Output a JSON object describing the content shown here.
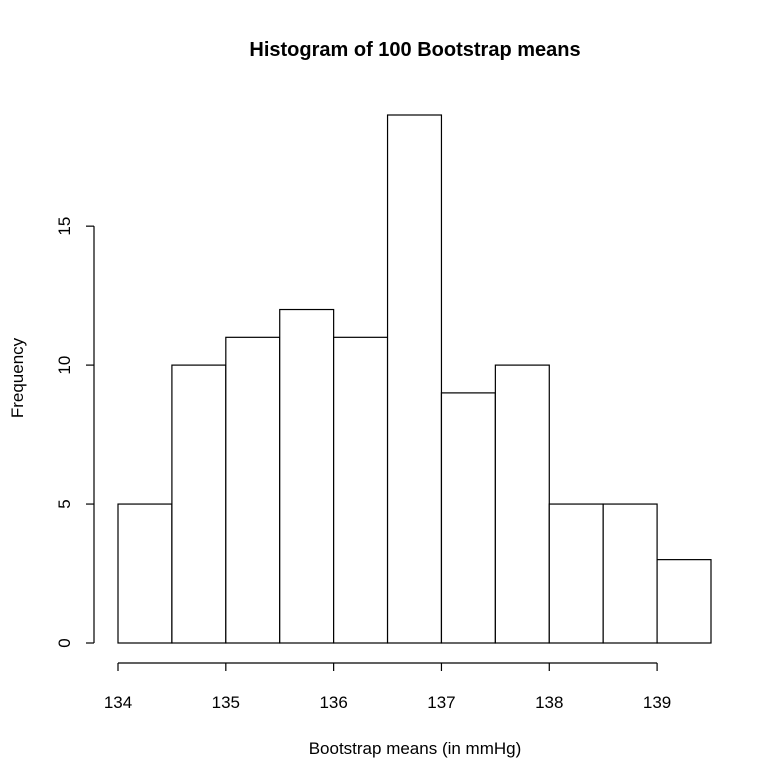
{
  "chart_data": {
    "type": "bar",
    "title": "Histogram of 100 Bootstrap means",
    "xlabel": "Bootstrap means (in mmHg)",
    "ylabel": "Frequency",
    "bins": [
      {
        "start": 134.0,
        "end": 134.5,
        "count": 5
      },
      {
        "start": 134.5,
        "end": 135.0,
        "count": 10
      },
      {
        "start": 135.0,
        "end": 135.5,
        "count": 11
      },
      {
        "start": 135.5,
        "end": 136.0,
        "count": 12
      },
      {
        "start": 136.0,
        "end": 136.5,
        "count": 11
      },
      {
        "start": 136.5,
        "end": 137.0,
        "count": 19
      },
      {
        "start": 137.0,
        "end": 137.5,
        "count": 9
      },
      {
        "start": 137.5,
        "end": 138.0,
        "count": 10
      },
      {
        "start": 138.0,
        "end": 138.5,
        "count": 5
      },
      {
        "start": 138.5,
        "end": 139.0,
        "count": 5
      },
      {
        "start": 139.0,
        "end": 139.5,
        "count": 3
      }
    ],
    "x_ticks": [
      "134",
      "135",
      "136",
      "137",
      "138",
      "139"
    ],
    "y_ticks": [
      "0",
      "5",
      "10",
      "15"
    ],
    "xlim": [
      134.0,
      139.5
    ],
    "ylim": [
      0,
      19
    ],
    "grid": false,
    "bar_fill": "#ffffff",
    "bar_stroke": "#000000"
  }
}
